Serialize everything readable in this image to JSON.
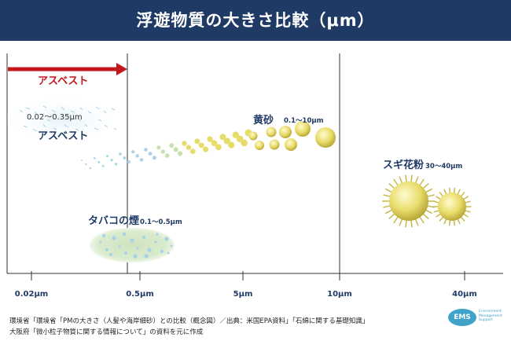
{
  "header": {
    "title": "浮遊物質の大きさ比較（μm）"
  },
  "colors": {
    "header_bg": "#1f3a64",
    "accent_red": "#c0161c",
    "label_navy": "#1f3a64",
    "pollen": "#e6dc6a",
    "tobacco": "#cfe3c0",
    "asbestos_fiber": "#a9d3e4"
  },
  "chart_data": {
    "type": "diagram",
    "axis_ticks": [
      "0.02μm",
      "0.5μm",
      "5μm",
      "10μm",
      "40μm"
    ],
    "particles": [
      {
        "name": "アスベスト",
        "size_label": "0.02〜0.35μm"
      },
      {
        "name": "黄砂",
        "size_label": "0.1〜10μm"
      },
      {
        "name": "タバコの煙",
        "size_label": "0.1〜0.5μm"
      },
      {
        "name": "スギ花粉",
        "size_label": "30〜40μm"
      }
    ],
    "range_arrow_label": "アスベスト"
  },
  "footer": {
    "source_lines": [
      "環境省「環境省「PMの大きさ（人髪や海岸細砂）との比較（概念図）／出典：米国EPA資料」「石綿に関する基礎知識」",
      "大阪府「微小粒子物質に関する情報について」の資料を元に作成"
    ],
    "logo": "EMS",
    "logo_text": "Environment Management Support"
  }
}
